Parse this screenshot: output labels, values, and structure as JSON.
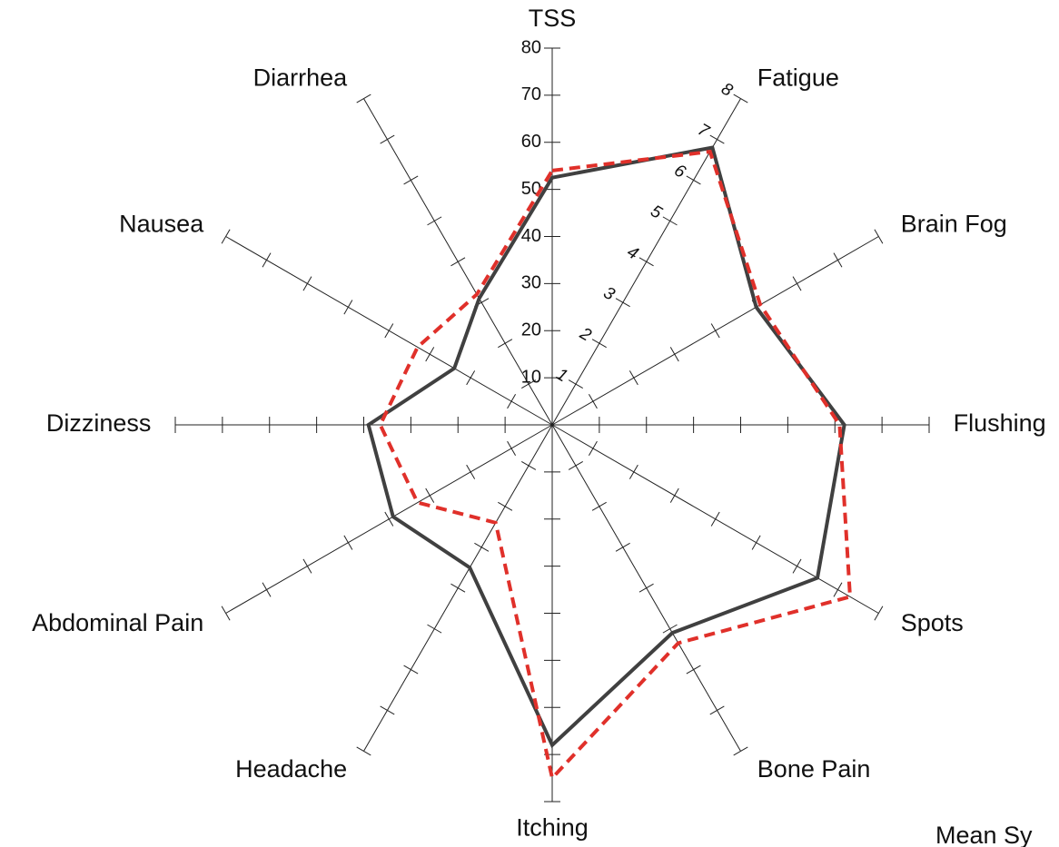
{
  "chart_data": {
    "type": "radar",
    "categories": [
      "TSS",
      "Fatigue",
      "Brain Fog",
      "Flushing",
      "Spots",
      "Bone Pain",
      "Itching",
      "Headache",
      "Abdominal Pain",
      "Dizziness",
      "Nausea",
      "Diarrhea"
    ],
    "tss_ylim": [
      0,
      80
    ],
    "tss_yticks": [
      10,
      20,
      30,
      40,
      50,
      60,
      70,
      80
    ],
    "ylim": [
      0,
      8
    ],
    "yticks": [
      1,
      2,
      3,
      4,
      5,
      6,
      7,
      8
    ],
    "series": [
      {
        "color": "#404040",
        "dash": false,
        "values": [
          52.5,
          6.8,
          5.0,
          6.2,
          6.5,
          5.1,
          6.8,
          3.5,
          3.9,
          3.9,
          2.4,
          3.1
        ]
      },
      {
        "color": "#e0302a",
        "dash": true,
        "values": [
          54,
          6.7,
          5.1,
          6.1,
          7.3,
          5.35,
          7.5,
          2.4,
          3.3,
          3.65,
          3.3,
          3.2
        ]
      }
    ],
    "annotation": "Mean Sy"
  }
}
